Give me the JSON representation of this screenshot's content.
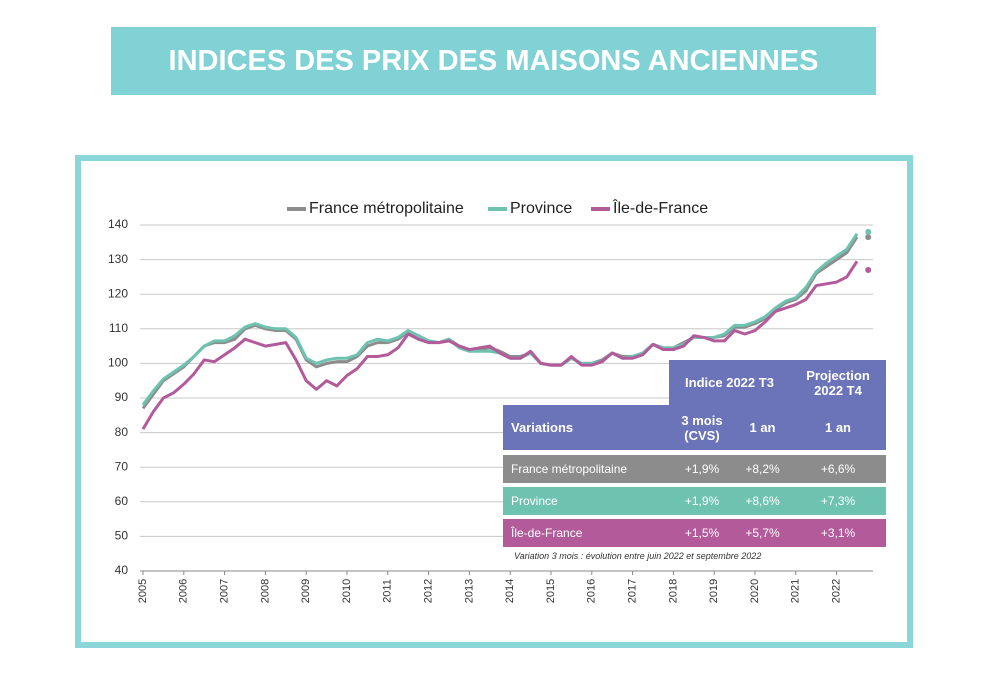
{
  "chart_data": {
    "type": "line",
    "title": "INDICES DES PRIX DES MAISONS ANCIENNES",
    "legend": "top",
    "grid": true,
    "ylim": [
      40,
      140
    ],
    "yticks": [
      40,
      50,
      60,
      70,
      80,
      90,
      100,
      110,
      120,
      130,
      140
    ],
    "categories": [
      "2005",
      null,
      null,
      null,
      "2006",
      null,
      null,
      null,
      "2007",
      null,
      null,
      null,
      "2008",
      null,
      null,
      null,
      "2009",
      null,
      null,
      null,
      "2010",
      null,
      null,
      null,
      "2011",
      null,
      null,
      null,
      "2012",
      null,
      null,
      null,
      "2013",
      null,
      null,
      null,
      "2014",
      null,
      null,
      null,
      "2015",
      null,
      null,
      null,
      "2016",
      null,
      null,
      null,
      "2017",
      null,
      null,
      null,
      "2018",
      null,
      null,
      null,
      "2019",
      null,
      null,
      null,
      "2020",
      null,
      null,
      null,
      "2021",
      null,
      null,
      null,
      "2022",
      null,
      null,
      null
    ],
    "series": [
      {
        "name": "France métropolitaine",
        "color": "#8c8c8c",
        "projection": 136.5,
        "values": [
          87,
          91,
          95,
          97,
          99,
          102,
          105,
          106,
          106,
          107,
          110,
          111,
          110,
          109.5,
          109.5,
          107,
          101,
          99,
          100,
          100.5,
          100.5,
          102,
          105,
          106,
          106,
          107,
          109,
          108,
          106.5,
          106,
          107,
          105,
          104,
          104,
          104.5,
          103.5,
          102,
          102,
          103,
          100,
          99.5,
          99.5,
          101.5,
          100,
          100,
          101,
          103,
          102,
          102,
          103,
          105.5,
          104.5,
          104.5,
          106,
          107.5,
          107.5,
          107.5,
          108,
          110.5,
          110.5,
          111.5,
          113,
          115.5,
          117.5,
          118.5,
          121,
          126,
          128,
          130,
          132,
          136.5,
          null
        ]
      },
      {
        "name": "Province",
        "color": "#6ec3b0",
        "projection": 138,
        "values": [
          88,
          92,
          95.5,
          97.5,
          99.5,
          102,
          105,
          106.5,
          106.5,
          108,
          110.5,
          111.5,
          110.5,
          110,
          110,
          107.5,
          101.5,
          100,
          101,
          101.5,
          101.5,
          102.5,
          106,
          107,
          106.5,
          107.5,
          109.5,
          108,
          106.5,
          106,
          107,
          104.5,
          103.5,
          103.5,
          103.5,
          103,
          101.5,
          101.5,
          103,
          100,
          99.5,
          99.5,
          101.5,
          100,
          100,
          100.5,
          103,
          101.5,
          102,
          103,
          105.5,
          104.5,
          104.5,
          105.5,
          107.5,
          107.5,
          107.5,
          108.5,
          111,
          111,
          112,
          113.5,
          116,
          118,
          119,
          122,
          126.5,
          129,
          131,
          133,
          137.5,
          null
        ]
      },
      {
        "name": "Île-de-France",
        "color": "#b35a9b",
        "projection": 127,
        "values": [
          81,
          86,
          90,
          91.5,
          94,
          97,
          101,
          100.5,
          102.5,
          104.5,
          107,
          106,
          105,
          105.5,
          106,
          101,
          95,
          92.5,
          95,
          93.5,
          96.5,
          98.5,
          102,
          102,
          102.5,
          104.5,
          108.5,
          107,
          106,
          106,
          106.5,
          105,
          104,
          104.5,
          105,
          103,
          101.5,
          101.5,
          103.5,
          100,
          99.5,
          99.5,
          102,
          99.5,
          99.5,
          100.5,
          103,
          101.5,
          101.5,
          102.5,
          105.5,
          104,
          104,
          105,
          108,
          107.5,
          106.5,
          106.5,
          109.5,
          108.5,
          109.5,
          112,
          115,
          116,
          117,
          118.5,
          122.5,
          123,
          123.5,
          125,
          129.5,
          null
        ]
      }
    ],
    "table": {
      "group_headers": [
        "Indice 2022 T3",
        "Projection 2022 T4"
      ],
      "columns": [
        "Variations",
        "3 mois (CVS)",
        "1 an",
        "1 an"
      ],
      "rows": [
        [
          "France métropolitaine",
          "+1,9%",
          "+8,2%",
          "+6,6%"
        ],
        [
          "Province",
          "+1,9%",
          "+8,6%",
          "+7,3%"
        ],
        [
          "Île-de-France",
          "+1,5%",
          "+5,7%",
          "+3,1%"
        ]
      ],
      "note": "Variation 3 mois : évolution entre juin 2022 et septembre 2022"
    }
  }
}
